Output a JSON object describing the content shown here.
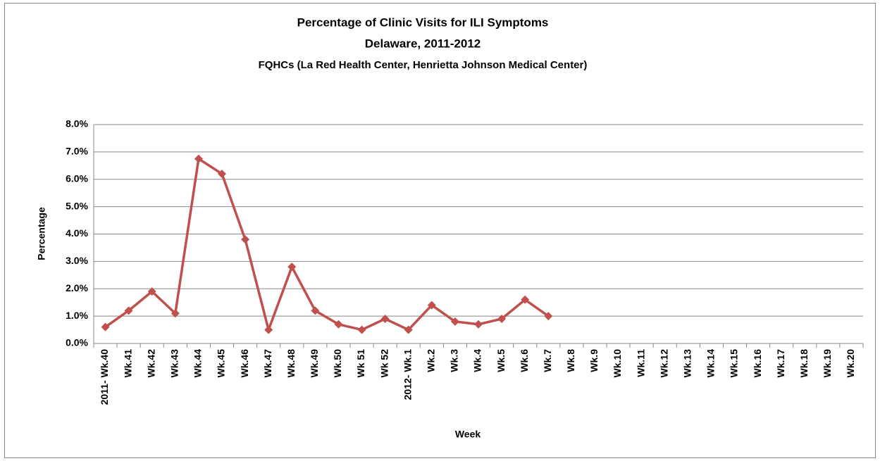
{
  "chart_data": {
    "type": "line",
    "title": "Percentage of Clinic Visits for ILI Symptoms",
    "subtitle": "Delaware, 2011-2012",
    "subtitle2": "FQHCs (La Red Health Center, Henrietta Johnson Medical Center)",
    "x_label": "Week",
    "y_label": "Percentage",
    "categories": [
      "2011- Wk.40",
      "Wk.41",
      "Wk.42",
      "Wk.43",
      "Wk.44",
      "Wk.45",
      "Wk.46",
      "Wk.47",
      "Wk.48",
      "Wk.49",
      "Wk.50",
      "Wk 51",
      "Wk 52",
      "2012- Wk.1",
      "Wk.2",
      "Wk.3",
      "Wk.4",
      "Wk.5",
      "Wk.6",
      "Wk.7",
      "Wk.8",
      "Wk.9",
      "Wk.10",
      "Wk.11",
      "Wk.12",
      "Wk.13",
      "Wk.14",
      "Wk.15",
      "Wk.16",
      "Wk.17",
      "Wk.18",
      "Wk.19",
      "Wk.20"
    ],
    "series": [
      {
        "color": "#c0504d",
        "values": [
          0.6,
          1.2,
          1.9,
          1.1,
          6.75,
          6.2,
          3.8,
          0.5,
          2.8,
          1.2,
          0.7,
          0.5,
          0.9,
          0.5,
          1.4,
          0.8,
          0.7,
          0.9,
          1.6,
          1.0,
          null,
          null,
          null,
          null,
          null,
          null,
          null,
          null,
          null,
          null,
          null,
          null,
          null
        ]
      }
    ],
    "ylim": [
      0,
      8
    ],
    "yticks": [
      {
        "value": 0,
        "label": "0.0%"
      },
      {
        "value": 1,
        "label": "1.0%"
      },
      {
        "value": 2,
        "label": "2.0%"
      },
      {
        "value": 3,
        "label": "3.0%"
      },
      {
        "value": 4,
        "label": "4.0%"
      },
      {
        "value": 5,
        "label": "5.0%"
      },
      {
        "value": 6,
        "label": "6.0%"
      },
      {
        "value": 7,
        "label": "7.0%"
      },
      {
        "value": 8,
        "label": "8.0%"
      }
    ],
    "grid": true
  }
}
